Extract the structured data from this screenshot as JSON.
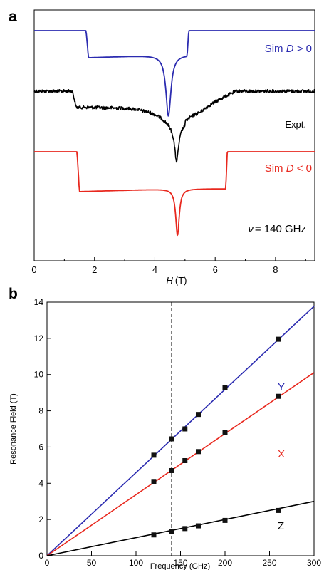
{
  "chart_data": [
    {
      "panel_label": "a",
      "type": "line",
      "xlabel_var": "H",
      "xlabel_unit": "(T)",
      "ylabel": "",
      "xlim": [
        0,
        9.3
      ],
      "xticks": [
        0,
        2,
        4,
        6,
        8
      ],
      "y_axis_ticks_shown": false,
      "grid": false,
      "legend": "none (inline labels right of each trace)",
      "series": [
        {
          "name": "Sim D > 0",
          "label_prefix": "Sim ",
          "label_var": "D",
          "label_suffix": " > 0",
          "color": "#2b2bb0",
          "kind": "simulated",
          "onset_field": 1.72,
          "center_field": 4.45,
          "edge_field": 5.12,
          "plateau_field_end": 9.3
        },
        {
          "name": "Expt.",
          "label": "Expt.",
          "color": "#000000",
          "kind": "experimental",
          "onset_field": 1.32,
          "center_field": 4.72,
          "edge_field": 6.4,
          "plateau_field_end": 9.3
        },
        {
          "name": "Sim D < 0",
          "label_prefix": "Sim ",
          "label_var": "D",
          "label_suffix": " < 0",
          "color": "#e8281e",
          "kind": "simulated",
          "onset_field": 1.42,
          "center_field": 4.75,
          "edge_field": 6.4,
          "plateau_field_end": 9.3
        }
      ],
      "annotation": {
        "symbol": "ν",
        "text": "= 140 GHz"
      }
    },
    {
      "panel_label": "b",
      "type": "scatter",
      "xlabel": "Frequency (GHz)",
      "ylabel": "Resonance Field (T)",
      "xlim": [
        0,
        300
      ],
      "ylim": [
        0,
        14
      ],
      "xticks": [
        0,
        50,
        100,
        150,
        200,
        250,
        300
      ],
      "yticks": [
        0,
        2,
        4,
        6,
        8,
        10,
        12,
        14
      ],
      "grid": false,
      "legend": "none (inline labels Y, X, Z near right end of lines)",
      "reference_line": {
        "x": 140,
        "style": "dashed",
        "color": "#000000"
      },
      "series": [
        {
          "name": "Y",
          "color": "#2b2bb0",
          "fit_slope": 0.0459,
          "x": [
            120,
            140,
            155,
            170,
            200,
            260
          ],
          "y": [
            5.55,
            6.45,
            7.0,
            7.8,
            9.3,
            11.95
          ]
        },
        {
          "name": "X",
          "color": "#e8281e",
          "fit_slope": 0.0337,
          "x": [
            120,
            140,
            155,
            170,
            200,
            260
          ],
          "y": [
            4.1,
            4.7,
            5.25,
            5.75,
            6.8,
            8.8
          ]
        },
        {
          "name": "Z",
          "color": "#000000",
          "fit_slope": 0.01,
          "x": [
            120,
            140,
            155,
            170,
            200,
            260
          ],
          "y": [
            1.15,
            1.35,
            1.5,
            1.65,
            1.95,
            2.5
          ]
        }
      ]
    }
  ]
}
